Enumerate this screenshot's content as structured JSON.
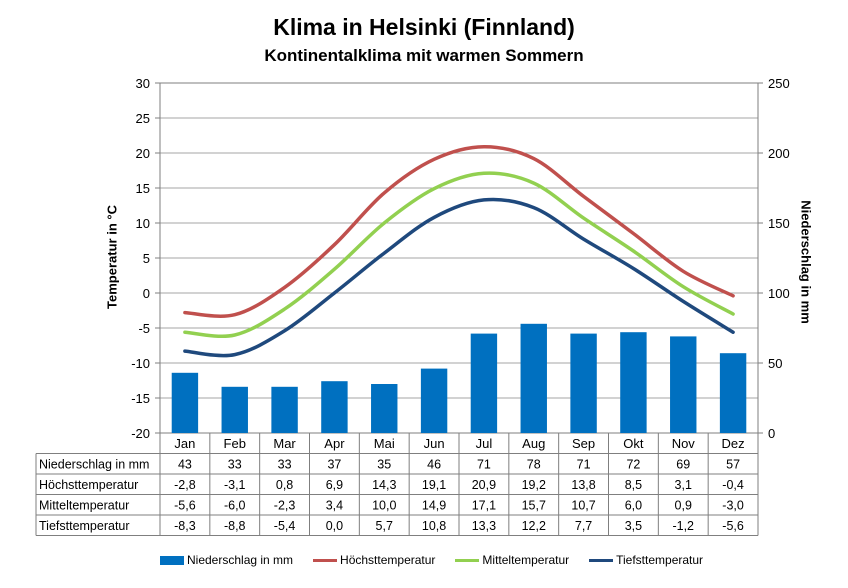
{
  "chart_data": {
    "type": "bar+line",
    "title": "Klima in Helsinki (Finnland)",
    "subtitle": "Kontinentalklima mit warmen Sommern",
    "ylabel_left": "Temperatur in °C",
    "ylabel_right": "Niederschlag in mm",
    "ylim_left": [
      -20,
      30
    ],
    "yticks_left": [
      "30",
      "25",
      "20",
      "15",
      "10",
      "5",
      "0",
      "-5",
      "-10",
      "-15",
      "-20"
    ],
    "ylim_right": [
      0,
      250
    ],
    "yticks_right": [
      "250",
      "200",
      "150",
      "100",
      "50",
      "0"
    ],
    "grid": true,
    "legend_position": "bottom",
    "categories": [
      "Jan",
      "Feb",
      "Mar",
      "Apr",
      "Mai",
      "Jun",
      "Jul",
      "Aug",
      "Sep",
      "Okt",
      "Nov",
      "Dez"
    ],
    "series": [
      {
        "name": "Niederschlag in mm",
        "kind": "bar",
        "axis": "right",
        "color": "#0070C0",
        "values": [
          43,
          33,
          33,
          37,
          35,
          46,
          71,
          78,
          71,
          72,
          69,
          57
        ],
        "labels": [
          "43",
          "33",
          "33",
          "37",
          "35",
          "46",
          "71",
          "78",
          "71",
          "72",
          "69",
          "57"
        ]
      },
      {
        "name": "Höchsttemperatur",
        "kind": "line",
        "axis": "left",
        "color": "#C0504D",
        "values": [
          -2.8,
          -3.1,
          0.8,
          6.9,
          14.3,
          19.1,
          20.9,
          19.2,
          13.8,
          8.5,
          3.1,
          -0.4
        ],
        "labels": [
          "-2,8",
          "-3,1",
          "0,8",
          "6,9",
          "14,3",
          "19,1",
          "20,9",
          "19,2",
          "13,8",
          "8,5",
          "3,1",
          "-0,4"
        ]
      },
      {
        "name": "Mitteltemperatur",
        "kind": "line",
        "axis": "left",
        "color": "#92D050",
        "values": [
          -5.6,
          -6.0,
          -2.3,
          3.4,
          10.0,
          14.9,
          17.1,
          15.7,
          10.7,
          6.0,
          0.9,
          -3.0
        ],
        "labels": [
          "-5,6",
          "-6,0",
          "-2,3",
          "3,4",
          "10,0",
          "14,9",
          "17,1",
          "15,7",
          "10,7",
          "6,0",
          "0,9",
          "-3,0"
        ]
      },
      {
        "name": "Tiefsttemperatur",
        "kind": "line",
        "axis": "left",
        "color": "#1F497D",
        "values": [
          -8.3,
          -8.8,
          -5.4,
          0.0,
          5.7,
          10.8,
          13.3,
          12.2,
          7.7,
          3.5,
          -1.2,
          -5.6
        ],
        "labels": [
          "-8,3",
          "-8,8",
          "-5,4",
          "0,0",
          "5,7",
          "10,8",
          "13,3",
          "12,2",
          "7,7",
          "3,5",
          "-1,2",
          "-5,6"
        ]
      }
    ]
  }
}
